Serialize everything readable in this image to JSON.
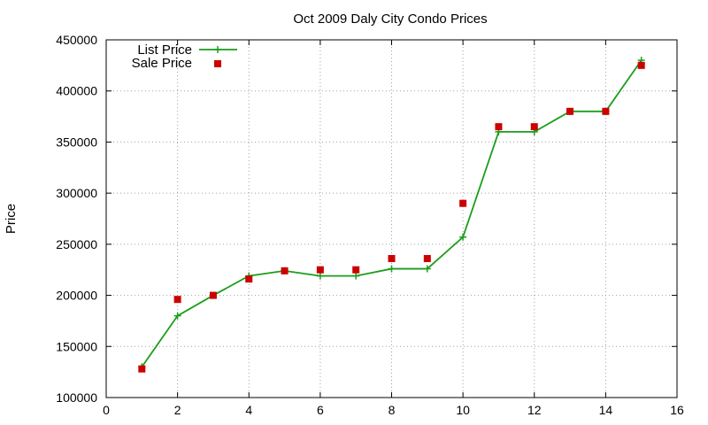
{
  "chart_data": {
    "type": "line",
    "title": "Oct 2009 Daly City Condo Prices",
    "xlabel": "",
    "ylabel": "Price",
    "xlim": [
      0,
      16
    ],
    "ylim": [
      100000,
      450000
    ],
    "xticks": [
      0,
      2,
      4,
      6,
      8,
      10,
      12,
      14,
      16
    ],
    "yticks": [
      100000,
      150000,
      200000,
      250000,
      300000,
      350000,
      400000,
      450000
    ],
    "grid": true,
    "legend_position": "top-left",
    "series": [
      {
        "name": "List Price",
        "style": "line with plus markers",
        "color": "#1a9e1a",
        "x": [
          1,
          2,
          3,
          4,
          5,
          6,
          7,
          8,
          9,
          10,
          11,
          12,
          13,
          14,
          15
        ],
        "y": [
          130000,
          180000,
          200000,
          219000,
          224000,
          219000,
          219000,
          226000,
          226000,
          257000,
          360000,
          360000,
          380000,
          380000,
          430000
        ]
      },
      {
        "name": "Sale Price",
        "style": "square markers",
        "color": "#cc0000",
        "x": [
          1,
          2,
          3,
          4,
          5,
          6,
          7,
          8,
          9,
          10,
          11,
          12,
          13,
          14,
          15
        ],
        "y": [
          128000,
          196000,
          200000,
          216000,
          224000,
          225000,
          225000,
          236000,
          236000,
          290000,
          365000,
          365000,
          380000,
          380000,
          425000
        ]
      }
    ]
  }
}
